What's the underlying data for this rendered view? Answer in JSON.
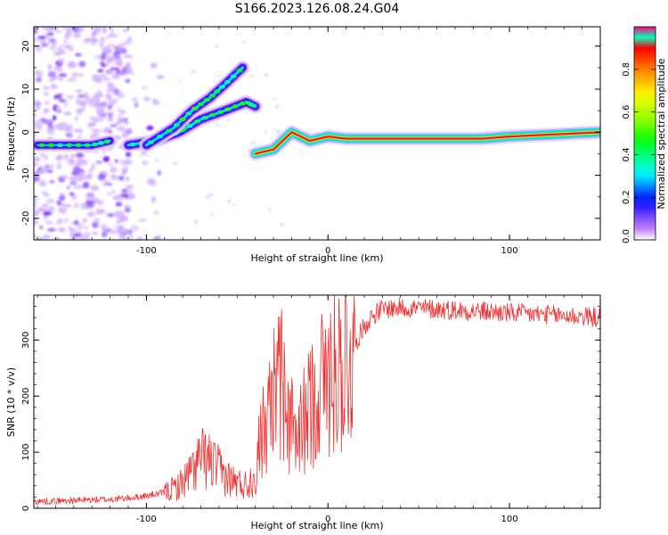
{
  "figure": {
    "title": "S166.2023.126.08.24.G04"
  },
  "chart_data": [
    {
      "type": "heatmap",
      "xlabel": "Height of straight line (km)",
      "ylabel": "Frequency (Hz)",
      "xlim": [
        -162,
        150
      ],
      "ylim": [
        -25,
        24.5
      ],
      "x_ticks": [
        -100,
        0,
        100
      ],
      "y_ticks": [
        -20,
        -10,
        0,
        10,
        20
      ],
      "grid": false,
      "colorbar": {
        "label": "Normalized spectral amplitude",
        "range": [
          0,
          1
        ],
        "ticks": [
          0.0,
          0.2,
          0.4,
          0.6,
          0.8
        ],
        "colormap": "hsv (purple-blue-cyan-green-yellow-orange-red)",
        "colors": [
          "#ffffff",
          "#7a00ff",
          "#0000ff",
          "#00e5ff",
          "#00ff60",
          "#ffff00",
          "#ff8000",
          "#ff0000",
          "#ff0080"
        ]
      },
      "features": [
        {
          "name": "noise",
          "x_range": [
            -162,
            -95
          ],
          "y_range": [
            -25,
            24.5
          ],
          "amplitude": 0.1
        },
        {
          "name": "upper-branch",
          "points": [
            [
              -100,
              -3
            ],
            [
              -85,
              1
            ],
            [
              -75,
              5
            ],
            [
              -65,
              8
            ],
            [
              -57,
              11
            ],
            [
              -47,
              15
            ]
          ],
          "amplitude": 0.4
        },
        {
          "name": "lower-branch",
          "points": [
            [
              -110,
              -3
            ],
            [
              -95,
              -2
            ],
            [
              -82,
              0
            ],
            [
              -70,
              3
            ],
            [
              -57,
              5
            ],
            [
              -45,
              7
            ],
            [
              -40,
              6
            ]
          ],
          "amplitude": 0.35
        },
        {
          "name": "left-line",
          "points": [
            [
              -160,
              -3
            ],
            [
              -145,
              -3
            ],
            [
              -130,
              -3
            ],
            [
              -120,
              -2
            ]
          ],
          "amplitude": 0.3
        },
        {
          "name": "main-line",
          "points": [
            [
              -40,
              -5
            ],
            [
              -30,
              -4
            ],
            [
              -20,
              0
            ],
            [
              -10,
              -2
            ],
            [
              0,
              -1
            ],
            [
              10,
              -1.5
            ],
            [
              50,
              -1.5
            ],
            [
              85,
              -1.5
            ],
            [
              100,
              -1
            ],
            [
              125,
              -0.5
            ],
            [
              150,
              0
            ]
          ],
          "amplitude": 0.9
        }
      ]
    },
    {
      "type": "line",
      "xlabel": "Height of straight line (km)",
      "ylabel": "SNR (10 * v/v)",
      "xlim": [
        -162,
        150
      ],
      "ylim": [
        0,
        380
      ],
      "x_ticks": [
        -100,
        0,
        100
      ],
      "y_ticks": [
        0,
        100,
        200,
        300
      ],
      "grid": false,
      "color": "#f03030",
      "series": [
        {
          "envelope_points": [
            [
              -162,
              12
            ],
            [
              -150,
              13
            ],
            [
              -140,
              14
            ],
            [
              -130,
              15
            ],
            [
              -120,
              16
            ],
            [
              -110,
              18
            ],
            [
              -100,
              22
            ],
            [
              -90,
              28
            ],
            [
              -82,
              40
            ],
            [
              -75,
              65
            ],
            [
              -70,
              90
            ],
            [
              -66,
              85
            ],
            [
              -62,
              75
            ],
            [
              -58,
              60
            ],
            [
              -54,
              52
            ],
            [
              -50,
              45
            ],
            [
              -45,
              42
            ],
            [
              -41,
              55
            ],
            [
              -37,
              90
            ],
            [
              -34,
              130
            ],
            [
              -31,
              190
            ],
            [
              -29,
              230
            ],
            [
              -27,
              250
            ],
            [
              -25,
              220
            ],
            [
              -23,
              180
            ],
            [
              -21,
              150
            ],
            [
              -19,
              135
            ],
            [
              -17,
              120
            ],
            [
              -14,
              150
            ],
            [
              -11,
              170
            ],
            [
              -8,
              200
            ],
            [
              -5,
              215
            ],
            [
              -2,
              230
            ],
            [
              1,
              240
            ],
            [
              4,
              250
            ],
            [
              7,
              250
            ],
            [
              10,
              265
            ],
            [
              13,
              280
            ],
            [
              16,
              300
            ],
            [
              20,
              325
            ],
            [
              25,
              345
            ],
            [
              30,
              355
            ],
            [
              40,
              358
            ],
            [
              60,
              355
            ],
            [
              80,
              352
            ],
            [
              100,
              348
            ],
            [
              120,
              345
            ],
            [
              140,
              342
            ],
            [
              150,
              340
            ]
          ]
        }
      ]
    }
  ]
}
